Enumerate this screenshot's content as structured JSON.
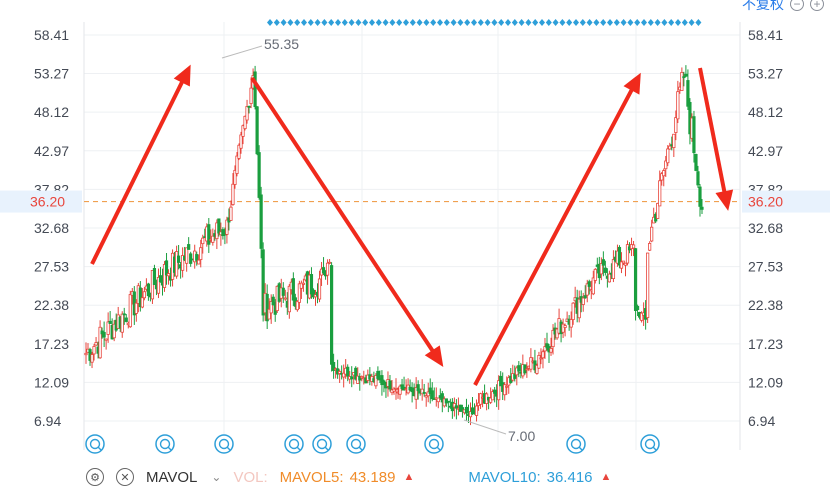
{
  "header": {
    "link_text": "不复权",
    "zoom_out_symbol": "−",
    "zoom_in_symbol": "+"
  },
  "chart_data": {
    "type": "candlestick",
    "y_ticks": [
      "58.41",
      "53.27",
      "48.12",
      "42.97",
      "37.82",
      "32.68",
      "27.53",
      "22.38",
      "17.23",
      "12.09",
      "6.94"
    ],
    "ylim": [
      6.94,
      58.41
    ],
    "grid": true,
    "current_price": "36.20",
    "max_annotation": "55.35",
    "min_annotation": "7.00",
    "top_marker_row": "dense blue diamond markers",
    "colors": {
      "up": "#e8453c",
      "down": "#1a9e3f",
      "price_line": "#f0a050",
      "arrow": "#f02a1c",
      "marker": "#2e9fd9"
    },
    "event_markers": [
      "Q",
      "Q",
      "Q",
      "Q",
      "Q",
      "Q",
      "Q",
      "Q",
      "Q"
    ],
    "trend_annotations": [
      "up-arrow",
      "down-arrow",
      "up-arrow",
      "down-arrow"
    ],
    "segments_approx": [
      {
        "phase": "rise",
        "from": 15,
        "to": 55.35
      },
      {
        "phase": "decline",
        "from": 55.35,
        "to": 7.0
      },
      {
        "phase": "rise",
        "from": 7.0,
        "to": 55.0
      },
      {
        "phase": "pullback",
        "from": 55.0,
        "to": 36.2
      }
    ]
  },
  "footer": {
    "indicator_name": "MAVOL",
    "vol_label": "VOL:",
    "mavol5_label": "MAVOL5:",
    "mavol5_value": "43.189",
    "mavol10_label": "MAVOL10:",
    "mavol10_value": "36.416",
    "up_marker": "▲"
  }
}
